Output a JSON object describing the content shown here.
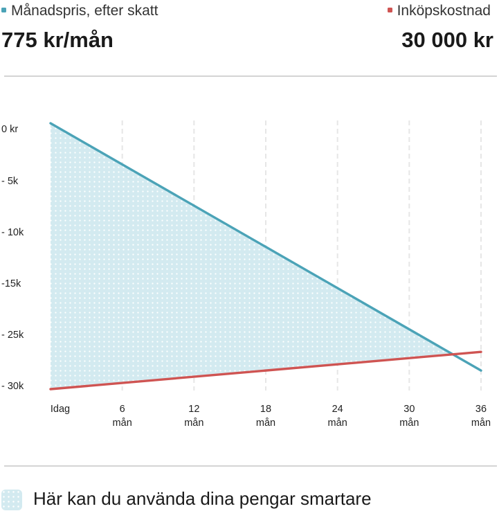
{
  "legend": {
    "monthly_label": "Månadspris, efter skatt",
    "monthly_value": "775 kr/mån",
    "purchase_label": "Inköpskostnad",
    "purchase_value": "30 000 kr"
  },
  "chart_data": {
    "type": "line",
    "x_tick_labels": [
      {
        "top": "Idag",
        "bottom": ""
      },
      {
        "top": "6",
        "bottom": "mån"
      },
      {
        "top": "12",
        "bottom": "mån"
      },
      {
        "top": "18",
        "bottom": "mån"
      },
      {
        "top": "24",
        "bottom": "mån"
      },
      {
        "top": "30",
        "bottom": "mån"
      },
      {
        "top": "36",
        "bottom": "mån"
      }
    ],
    "x_ticks": [
      0,
      6,
      12,
      18,
      24,
      30,
      36
    ],
    "y_tick_labels": [
      "0 kr",
      "- 5k",
      "- 10k",
      "-15k",
      "- 25k",
      "- 30k"
    ],
    "xlim": [
      0,
      36
    ],
    "grid": "vertical dashed",
    "series": [
      {
        "name": "Månadspris, efter skatt",
        "color": "#4ba3b7",
        "x": [
          0,
          36
        ],
        "y": [
          0,
          -27900
        ]
      },
      {
        "name": "Inköpskostnad",
        "color": "#cf5452",
        "x": [
          0,
          36
        ],
        "y": [
          -30000,
          -25800
        ]
      }
    ],
    "shaded_region": {
      "between": [
        "Månadspris, efter skatt",
        "Inköpskostnad"
      ],
      "color": "#d3eaf0",
      "pattern": "dots"
    }
  },
  "colors": {
    "monthly": "#4ba3b7",
    "purchase": "#cf5452",
    "area": "#d3eaf0"
  },
  "footer": {
    "icon": "dotted-area-swatch",
    "text": "Här kan du använda dina pengar smartare"
  }
}
